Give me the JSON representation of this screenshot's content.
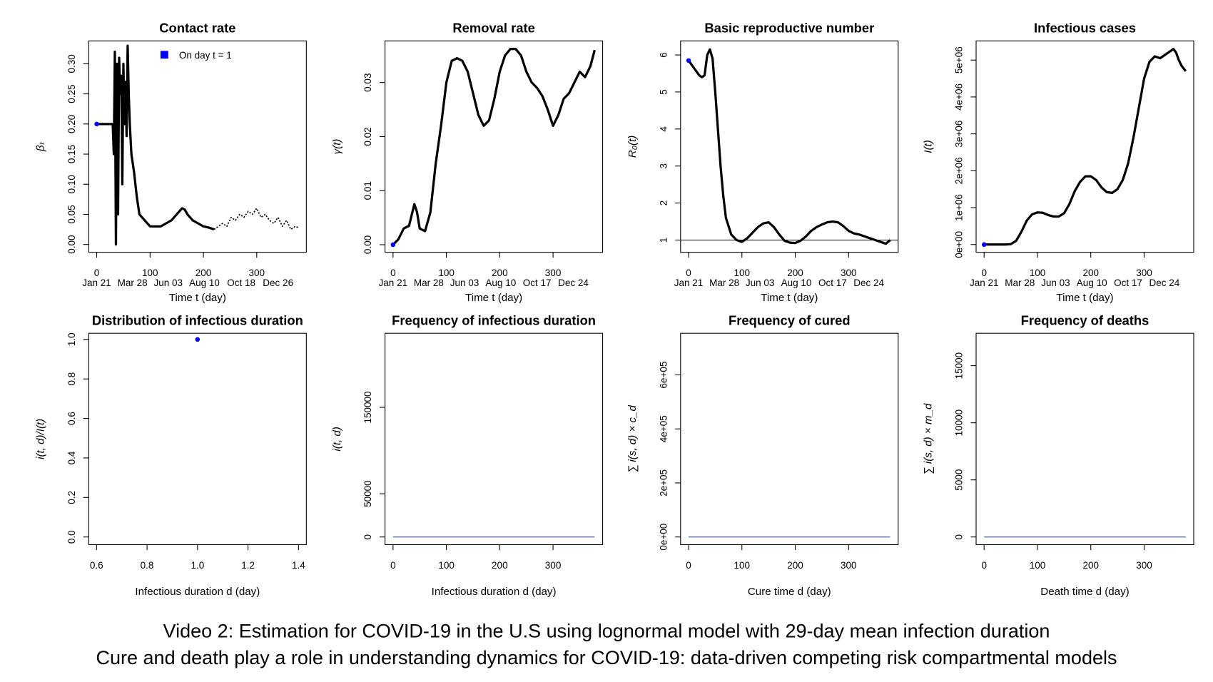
{
  "chart_data": [
    {
      "type": "line",
      "title": "Contact rate",
      "xlabel": "Time t (day)",
      "ylabel": "βₜ",
      "xlim": [
        -15,
        393
      ],
      "ylim": [
        -0.013,
        0.338
      ],
      "xticks": [
        0,
        100,
        200,
        300
      ],
      "date_ticks": [
        {
          "value": 0,
          "label": "Jan 21"
        },
        {
          "value": 67,
          "label": "Mar 28"
        },
        {
          "value": 134,
          "label": "Jun 03"
        },
        {
          "value": 202,
          "label": "Aug 10"
        },
        {
          "value": 271,
          "label": "Oct 18"
        },
        {
          "value": 340,
          "label": "Dec 26"
        }
      ],
      "yticks": [
        {
          "value": 0,
          "label": "0.00"
        },
        {
          "value": 0.05,
          "label": "0.05"
        },
        {
          "value": 0.1,
          "label": "0.10"
        },
        {
          "value": 0.15,
          "label": "0.15"
        },
        {
          "value": 0.2,
          "label": "0.20"
        },
        {
          "value": 0.25,
          "label": "0.25"
        },
        {
          "value": 0.3,
          "label": "0.30"
        }
      ],
      "legend": "top",
      "series": [
        {
          "color": "#000000",
          "linestyle": "solid",
          "x": [
            0,
            10,
            20,
            30,
            32,
            34,
            36,
            38,
            40,
            42,
            44,
            46,
            48,
            50,
            52,
            54,
            56,
            58,
            60,
            62,
            65,
            70,
            75,
            80,
            90,
            100,
            110,
            120,
            130,
            140,
            150,
            160,
            165,
            170,
            180,
            190,
            200,
            210,
            220
          ],
          "values": [
            0.2,
            0.2,
            0.2,
            0.2,
            0.15,
            0.32,
            0,
            0.3,
            0.05,
            0.31,
            0.25,
            0.28,
            0.1,
            0.3,
            0.2,
            0.27,
            0.18,
            0.33,
            0.25,
            0.2,
            0.15,
            0.12,
            0.08,
            0.05,
            0.04,
            0.03,
            0.03,
            0.03,
            0.035,
            0.04,
            0.05,
            0.06,
            0.058,
            0.05,
            0.04,
            0.035,
            0.03,
            0.028,
            0.025
          ]
        },
        {
          "color": "#000000",
          "linestyle": "dotted",
          "x": [
            220,
            228,
            236,
            244,
            252,
            260,
            268,
            276,
            284,
            292,
            300,
            308,
            316,
            324,
            332,
            340,
            348,
            356,
            364,
            372,
            378
          ],
          "values": [
            0.025,
            0.03,
            0.035,
            0.03,
            0.045,
            0.04,
            0.05,
            0.045,
            0.055,
            0.05,
            0.06,
            0.045,
            0.05,
            0.04,
            0.035,
            0.045,
            0.03,
            0.04,
            0.025,
            0.03,
            0.028
          ]
        },
        {
          "name": "On day t =  1",
          "color": "#0000ff",
          "linestyle": "point",
          "x": [
            0
          ],
          "values": [
            0.2
          ]
        }
      ]
    },
    {
      "type": "line",
      "title": "Removal rate",
      "xlabel": "Time t (day)",
      "ylabel": "γ(t)",
      "xlim": [
        -15,
        393
      ],
      "ylim": [
        -0.0014,
        0.0377
      ],
      "xticks": [
        0,
        100,
        200,
        300
      ],
      "date_ticks": [
        {
          "value": 0,
          "label": "Jan 21"
        },
        {
          "value": 67,
          "label": "Mar 28"
        },
        {
          "value": 134,
          "label": "Jun 03"
        },
        {
          "value": 202,
          "label": "Aug 10"
        },
        {
          "value": 270,
          "label": "Oct 17"
        },
        {
          "value": 338,
          "label": "Dec 24"
        }
      ],
      "yticks": [
        {
          "value": 0,
          "label": "0.00"
        },
        {
          "value": 0.01,
          "label": "0.01"
        },
        {
          "value": 0.02,
          "label": "0.02"
        },
        {
          "value": 0.03,
          "label": "0.03"
        }
      ],
      "series": [
        {
          "color": "#000000",
          "linestyle": "solid",
          "x": [
            0,
            10,
            20,
            30,
            40,
            45,
            50,
            60,
            70,
            80,
            90,
            100,
            110,
            120,
            130,
            140,
            150,
            160,
            170,
            180,
            190,
            200,
            210,
            220,
            230,
            240,
            250,
            260,
            270,
            280,
            290,
            300,
            310,
            320,
            330,
            340,
            350,
            360,
            370,
            378
          ],
          "values": [
            0,
            0.001,
            0.003,
            0.0035,
            0.0075,
            0.006,
            0.003,
            0.0025,
            0.006,
            0.015,
            0.022,
            0.03,
            0.034,
            0.0345,
            0.034,
            0.032,
            0.028,
            0.024,
            0.022,
            0.023,
            0.027,
            0.032,
            0.035,
            0.0362,
            0.0362,
            0.035,
            0.032,
            0.03,
            0.029,
            0.0275,
            0.025,
            0.022,
            0.024,
            0.027,
            0.028,
            0.03,
            0.032,
            0.031,
            0.033,
            0.036
          ]
        },
        {
          "color": "#0000ff",
          "linestyle": "point",
          "x": [
            0
          ],
          "values": [
            0
          ]
        }
      ]
    },
    {
      "type": "line",
      "title": "Basic reproductive number",
      "xlabel": "Time t (day)",
      "ylabel": "R₀(t)",
      "xlim": [
        -15,
        393
      ],
      "ylim": [
        0.67,
        6.38
      ],
      "xticks": [
        0,
        100,
        200,
        300
      ],
      "hline": 1,
      "date_ticks": [
        {
          "value": 0,
          "label": "Jan 21"
        },
        {
          "value": 67,
          "label": "Mar 28"
        },
        {
          "value": 134,
          "label": "Jun 03"
        },
        {
          "value": 202,
          "label": "Aug 10"
        },
        {
          "value": 270,
          "label": "Oct 17"
        },
        {
          "value": 338,
          "label": "Dec 24"
        }
      ],
      "yticks": [
        1,
        2,
        3,
        4,
        5,
        6
      ],
      "series": [
        {
          "color": "#000000",
          "linestyle": "solid",
          "x": [
            0,
            5,
            10,
            15,
            20,
            25,
            30,
            35,
            40,
            45,
            50,
            55,
            60,
            65,
            70,
            80,
            90,
            100,
            110,
            120,
            130,
            140,
            150,
            160,
            170,
            180,
            190,
            200,
            210,
            220,
            230,
            240,
            250,
            260,
            270,
            280,
            290,
            300,
            310,
            320,
            330,
            340,
            350,
            360,
            370,
            378
          ],
          "values": [
            5.85,
            5.75,
            5.65,
            5.55,
            5.45,
            5.4,
            5.45,
            6,
            6.15,
            5.9,
            5,
            4,
            3,
            2.2,
            1.6,
            1.15,
            1,
            0.95,
            1.05,
            1.2,
            1.35,
            1.45,
            1.48,
            1.35,
            1.15,
            0.98,
            0.93,
            0.92,
            0.98,
            1.1,
            1.25,
            1.35,
            1.42,
            1.48,
            1.5,
            1.48,
            1.38,
            1.25,
            1.18,
            1.15,
            1.1,
            1.05,
            1.0,
            0.95,
            0.9,
            1.0
          ]
        },
        {
          "color": "#0000ff",
          "linestyle": "point",
          "x": [
            0
          ],
          "values": [
            5.85
          ]
        }
      ]
    },
    {
      "type": "line",
      "title": "Infectious cases",
      "xlabel": "Time t (day)",
      "ylabel": "I(t)",
      "xlim": [
        -15,
        393
      ],
      "ylim": [
        -210000,
        5520000
      ],
      "xticks": [
        0,
        100,
        200,
        300
      ],
      "date_ticks": [
        {
          "value": 0,
          "label": "Jan 21"
        },
        {
          "value": 67,
          "label": "Mar 28"
        },
        {
          "value": 134,
          "label": "Jun 03"
        },
        {
          "value": 202,
          "label": "Aug 10"
        },
        {
          "value": 270,
          "label": "Oct 17"
        },
        {
          "value": 338,
          "label": "Dec 24"
        }
      ],
      "yticks": [
        {
          "value": 0,
          "label": "0e+00"
        },
        {
          "value": 1000000,
          "label": "1e+06"
        },
        {
          "value": 2000000,
          "label": "2e+06"
        },
        {
          "value": 3000000,
          "label": "3e+06"
        },
        {
          "value": 4000000,
          "label": "4e+06"
        },
        {
          "value": 5000000,
          "label": "5e+06"
        }
      ],
      "series": [
        {
          "color": "#000000",
          "linestyle": "solid",
          "x": [
            0,
            20,
            40,
            50,
            60,
            70,
            80,
            90,
            100,
            110,
            120,
            130,
            140,
            150,
            160,
            170,
            180,
            190,
            200,
            210,
            220,
            230,
            240,
            250,
            260,
            270,
            280,
            290,
            300,
            310,
            320,
            330,
            340,
            350,
            355,
            360,
            365,
            370,
            378
          ],
          "values": [
            0,
            0,
            0,
            10000,
            100000,
            350000,
            650000,
            820000,
            870000,
            860000,
            800000,
            760000,
            760000,
            850000,
            1100000,
            1450000,
            1700000,
            1850000,
            1850000,
            1750000,
            1550000,
            1420000,
            1400000,
            1500000,
            1750000,
            2200000,
            2900000,
            3700000,
            4500000,
            4950000,
            5100000,
            5050000,
            5150000,
            5250000,
            5300000,
            5200000,
            5000000,
            4850000,
            4700000
          ]
        },
        {
          "color": "#0000ff",
          "linestyle": "point",
          "x": [
            0
          ],
          "values": [
            0
          ]
        }
      ]
    },
    {
      "type": "scatter",
      "title": "Distribution of infectious duration",
      "xlabel": "Infectious duration d (day)",
      "ylabel": "i(t, d)/I(t)",
      "xlim": [
        0.569,
        1.431
      ],
      "ylim": [
        -0.039,
        1.031
      ],
      "xticks": [
        0.6,
        0.8,
        {
          "value": 1,
          "label": "1.0"
        },
        1.2,
        1.4
      ],
      "yticks": [
        {
          "value": 0,
          "label": "0.0"
        },
        0.2,
        0.4,
        0.6,
        0.8,
        {
          "value": 1,
          "label": "1.0"
        }
      ],
      "series": [
        {
          "color": "#0000ff",
          "linestyle": "point",
          "x": [
            1
          ],
          "values": [
            1
          ]
        }
      ]
    },
    {
      "type": "line",
      "title": "Frequency of infectious duration",
      "xlabel": "Infectious duration d (day)",
      "ylabel": "i(t, d)",
      "xlim": [
        -15,
        393
      ],
      "ylim": [
        -8930,
        235700
      ],
      "xticks": [
        0,
        100,
        200,
        300
      ],
      "yticks": [
        0,
        50000,
        150000
      ],
      "series": [
        {
          "color": "#5b6bb0",
          "linestyle": "thin",
          "x": [
            0,
            378
          ],
          "values": [
            0,
            0
          ]
        }
      ]
    },
    {
      "type": "line",
      "title": "Frequency of cured",
      "xlabel": "Cure time d (day)",
      "ylabel": "∑ i(s, d) × c_d",
      "xlim": [
        -15,
        393
      ],
      "ylim": [
        -28600,
        754000
      ],
      "xticks": [
        0,
        100,
        200,
        300
      ],
      "yticks": [
        {
          "value": 0,
          "label": "0e+00"
        },
        {
          "value": 200000,
          "label": "2e+05"
        },
        {
          "value": 400000,
          "label": "4e+05"
        },
        {
          "value": 600000,
          "label": "6e+05"
        }
      ],
      "series": [
        {
          "color": "#5b6bb0",
          "linestyle": "thin",
          "x": [
            0,
            378
          ],
          "values": [
            0,
            0
          ]
        }
      ]
    },
    {
      "type": "line",
      "title": "Frequency of deaths",
      "xlabel": "Death time d (day)",
      "ylabel": "∑ i(s, d) × m_d",
      "xlim": [
        -15,
        393
      ],
      "ylim": [
        -676,
        17840
      ],
      "xticks": [
        0,
        100,
        200,
        300
      ],
      "yticks": [
        0,
        5000,
        10000,
        15000
      ],
      "series": [
        {
          "color": "#5b6bb0",
          "linestyle": "thin",
          "x": [
            0,
            378
          ],
          "values": [
            0,
            0
          ]
        }
      ]
    }
  ],
  "caption": [
    "Video 2: Estimation for COVID-19 in the U.S using lognormal model with 29-day mean infection duration",
    "Cure and death play a role in understanding dynamics for COVID-19: data-driven competing risk compartmental models"
  ]
}
